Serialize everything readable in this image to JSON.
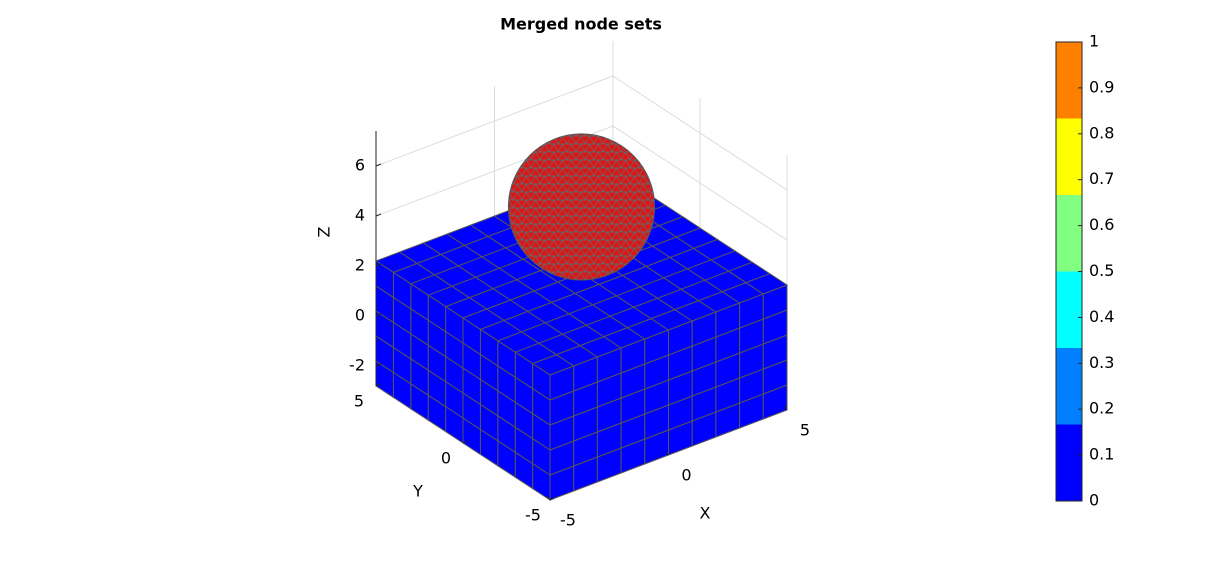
{
  "chart_data": {
    "type": "mesh3d",
    "title": "Merged node sets",
    "xlabel": "X",
    "ylabel": "Y",
    "zlabel": "Z",
    "xlim": [
      -5,
      5
    ],
    "ylim": [
      -5,
      5
    ],
    "zlim": [
      -2.8,
      7.4
    ],
    "xticks": [
      -5,
      0,
      5
    ],
    "yticks": [
      -5,
      0,
      5
    ],
    "zticks": [
      -2,
      0,
      2,
      4,
      6
    ],
    "grid": true,
    "box_color": "#0000ff",
    "sphere_color": "#e01414",
    "colorbar": {
      "clim": [
        0,
        1
      ],
      "ticks": [
        0,
        0.1,
        0.2,
        0.3,
        0.4,
        0.5,
        0.6,
        0.7,
        0.8,
        0.9,
        1
      ],
      "colors": [
        "#0000ff",
        "#0080ff",
        "#00ffff",
        "#80ff80",
        "#ffff00",
        "#ff8000"
      ]
    }
  }
}
